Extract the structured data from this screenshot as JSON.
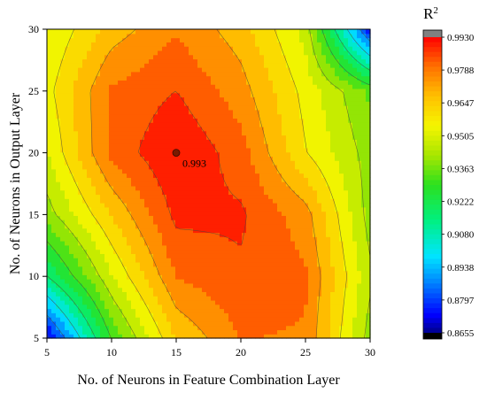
{
  "chart_data": {
    "type": "heatmap",
    "subtype": "filled-contour",
    "title": "",
    "xlabel": "No. of  Neurons in Feature Combination Layer",
    "ylabel": "No. of  Neurons in Output Layer",
    "xlim": [
      5,
      30
    ],
    "ylim": [
      5,
      30
    ],
    "x_ticks": [
      "5",
      "10",
      "15",
      "20",
      "25",
      "30"
    ],
    "y_ticks": [
      "5",
      "10",
      "15",
      "20",
      "25",
      "30"
    ],
    "x": [
      5,
      10,
      15,
      20,
      25,
      30
    ],
    "y": [
      5,
      10,
      15,
      20,
      25,
      30
    ],
    "z": [
      [
        0.87,
        0.93,
        0.965,
        0.979,
        0.978,
        0.94
      ],
      [
        0.915,
        0.95,
        0.979,
        0.985,
        0.98,
        0.945
      ],
      [
        0.94,
        0.965,
        0.988,
        0.987,
        0.975,
        0.94
      ],
      [
        0.95,
        0.981,
        0.993,
        0.982,
        0.958,
        0.94
      ],
      [
        0.955,
        0.98,
        0.986,
        0.975,
        0.955,
        0.935
      ],
      [
        0.95,
        0.968,
        0.978,
        0.968,
        0.948,
        0.875
      ]
    ],
    "z_layout": "z[row][col], rows = y values, cols = x values",
    "annotation": {
      "x": 15,
      "y": 20,
      "label": "0.993"
    },
    "colorbar": {
      "title": "R²",
      "title_base": "R",
      "title_sup": "2",
      "min": 0.8655,
      "max": 0.993,
      "tick_labels": [
        "0.9930",
        "0.9788",
        "0.9647",
        "0.9505",
        "0.9363",
        "0.9222",
        "0.9080",
        "0.8938",
        "0.8797",
        "0.8655"
      ],
      "over_color": "#808080",
      "under_color": "#000000"
    },
    "color_stops": [
      {
        "t": 0.0,
        "color": "#00008b"
      },
      {
        "t": 0.06,
        "color": "#0000ff"
      },
      {
        "t": 0.18,
        "color": "#0090ff"
      },
      {
        "t": 0.26,
        "color": "#00e5ff"
      },
      {
        "t": 0.38,
        "color": "#00f080"
      },
      {
        "t": 0.5,
        "color": "#2ce01e"
      },
      {
        "t": 0.6,
        "color": "#a8e600"
      },
      {
        "t": 0.7,
        "color": "#f5f500"
      },
      {
        "t": 0.8,
        "color": "#ffc000"
      },
      {
        "t": 0.9,
        "color": "#ff7000"
      },
      {
        "t": 1.0,
        "color": "#ff0000"
      }
    ],
    "grid": false,
    "contour_lines": true
  }
}
